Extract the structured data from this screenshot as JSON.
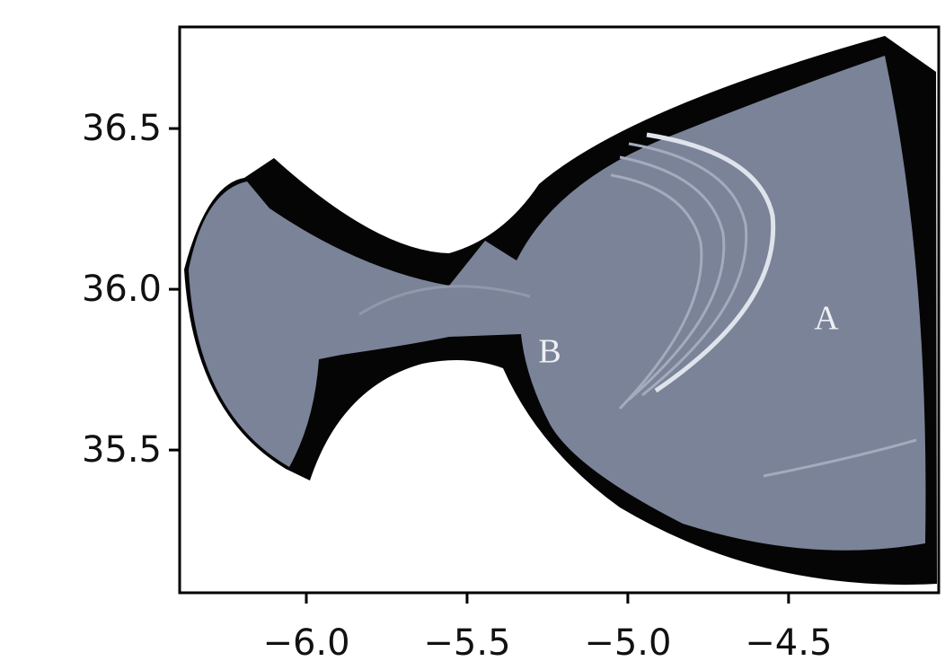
{
  "chart_data": {
    "type": "map",
    "xlim": [
      -6.394,
      -4.033
    ],
    "ylim": [
      35.056,
      36.816
    ],
    "xticks": [
      {
        "value": -6.0,
        "label": "−6.0"
      },
      {
        "value": -5.5,
        "label": "−5.5"
      },
      {
        "value": -5.0,
        "label": "−5.0"
      },
      {
        "value": -4.5,
        "label": "−4.5"
      }
    ],
    "yticks": [
      35.5,
      {
        "value": 36.0,
        "label": "36.0"
      },
      36.5
    ],
    "annotations": [
      "A",
      "B"
    ]
  }
}
